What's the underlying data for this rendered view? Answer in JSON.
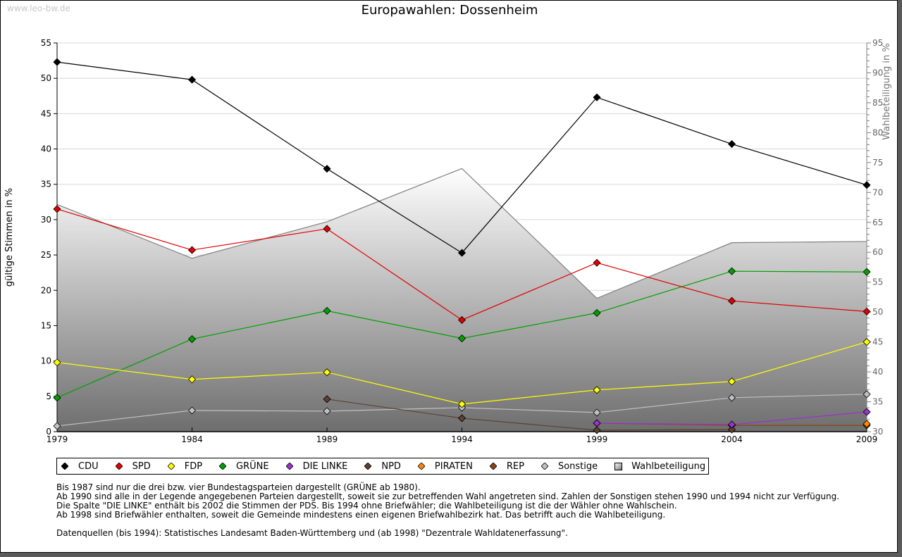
{
  "watermark": "www.leo-bw.de",
  "title": "Europawahlen: Dossenheim",
  "notes": [
    "Bis 1987 sind nur die drei bzw. vier Bundestagsparteien dargestellt (GRÜNE ab 1980).",
    "Ab 1990 sind alle in der Legende angegebenen Parteien dargestellt, soweit sie zur betreffenden Wahl angetreten sind. Zahlen der Sonstigen stehen 1990 und 1994 nicht zur Verfügung.",
    "Die Spalte \"DIE LINKE\" enthält bis 2002 die Stimmen der PDS. Bis 1994 ohne Briefwähler; die Wahlbeteiligung ist die der Wähler ohne Wahlschein.",
    "Ab 1998 sind Briefwähler enthalten, soweit die Gemeinde mindestens einen eigenen Briefwahlbezirk hat. Das betrifft auch die Wahlbeteiligung."
  ],
  "source": "Datenquellen (bis 1994): Statistisches Landesamt Baden-Württemberg und (ab 1998) \"Dezentrale Wahldatenerfassung\".",
  "chart_data": {
    "type": "line",
    "title": "Europawahlen: Dossenheim",
    "xlabel": "",
    "ylabel": "gültige Stimmen in %",
    "y2label": "Wahlbeteiligung in %",
    "ylim": [
      0,
      55
    ],
    "y2lim": [
      30,
      95
    ],
    "yticks": [
      0,
      5,
      10,
      15,
      20,
      25,
      30,
      35,
      40,
      45,
      50,
      55
    ],
    "y2ticks": [
      30,
      35,
      40,
      45,
      50,
      55,
      60,
      65,
      70,
      75,
      80,
      85,
      90,
      95
    ],
    "grid": true,
    "legend_position": "bottom",
    "x": [
      1979,
      1984,
      1989,
      1994,
      1999,
      2004,
      2009
    ],
    "series": [
      {
        "name": "CDU",
        "color": "#000000",
        "values": [
          52.3,
          49.8,
          37.2,
          25.3,
          47.3,
          40.7,
          34.9
        ]
      },
      {
        "name": "SPD",
        "color": "#e00000",
        "values": [
          31.5,
          25.7,
          28.7,
          15.8,
          23.9,
          18.5,
          17.0
        ]
      },
      {
        "name": "FDP",
        "color": "#ffff00",
        "values": [
          9.8,
          7.4,
          8.4,
          3.9,
          5.9,
          7.1,
          12.7
        ]
      },
      {
        "name": "GRÜNE",
        "color": "#00a000",
        "values": [
          4.8,
          13.1,
          17.1,
          13.2,
          16.8,
          22.7,
          22.6
        ]
      },
      {
        "name": "DIE LINKE",
        "color": "#9933cc",
        "values": [
          null,
          null,
          null,
          null,
          1.2,
          1.0,
          2.8
        ]
      },
      {
        "name": "NPD",
        "color": "#5c4033",
        "values": [
          null,
          null,
          4.6,
          1.9,
          0.2,
          0.3,
          null
        ]
      },
      {
        "name": "PIRATEN",
        "color": "#ff8800",
        "values": [
          null,
          null,
          null,
          null,
          null,
          null,
          1.1
        ]
      },
      {
        "name": "REP",
        "color": "#8b4513",
        "values": [
          null,
          null,
          null,
          null,
          1.2,
          0.9,
          0.9
        ]
      },
      {
        "name": "Sonstige",
        "color": "#c0c0c0",
        "values": [
          0.8,
          3.0,
          2.9,
          3.4,
          2.7,
          4.8,
          5.3
        ]
      }
    ],
    "turnout": {
      "name": "Wahlbeteiligung",
      "axis": "right",
      "values": [
        68.0,
        59.0,
        65.1,
        74.0,
        52.3,
        61.6,
        61.8
      ]
    }
  }
}
